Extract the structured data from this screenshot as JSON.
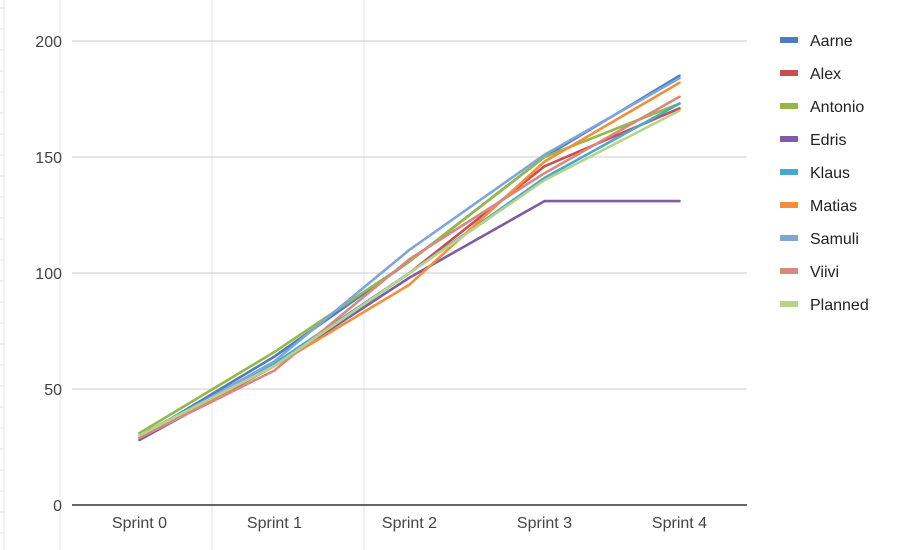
{
  "chart_data": {
    "type": "line",
    "title": "",
    "xlabel": "",
    "ylabel": "",
    "categories": [
      "Sprint 0",
      "Sprint 1",
      "Sprint 2",
      "Sprint 3",
      "Sprint 4"
    ],
    "ylim": [
      0,
      200
    ],
    "yticks": [
      "0",
      "50",
      "100",
      "150",
      "200"
    ],
    "grid": true,
    "legend_position": "right",
    "series": [
      {
        "name": "Aarne",
        "color": "#4a7bc4",
        "values": [
          29,
          64,
          105,
          150,
          185
        ]
      },
      {
        "name": "Alex",
        "color": "#c94e4e",
        "values": [
          29,
          60,
          100,
          146,
          171
        ]
      },
      {
        "name": "Antonio",
        "color": "#93b944",
        "values": [
          31,
          66,
          105,
          150,
          173
        ]
      },
      {
        "name": "Edris",
        "color": "#7e5ea3",
        "values": [
          28,
          60,
          98,
          131,
          131
        ]
      },
      {
        "name": "Klaus",
        "color": "#48aac9",
        "values": [
          30,
          61,
          100,
          141,
          173
        ]
      },
      {
        "name": "Matias",
        "color": "#f28f3b",
        "values": [
          29,
          60,
          95,
          148,
          182
        ]
      },
      {
        "name": "Samuli",
        "color": "#7ea6d8",
        "values": [
          29,
          62,
          110,
          151,
          184
        ]
      },
      {
        "name": "Viivi",
        "color": "#d98880",
        "values": [
          29,
          58,
          106,
          143,
          176
        ]
      },
      {
        "name": "Planned",
        "color": "#b5d38d",
        "values": [
          30,
          60,
          100,
          140,
          170
        ]
      }
    ]
  }
}
